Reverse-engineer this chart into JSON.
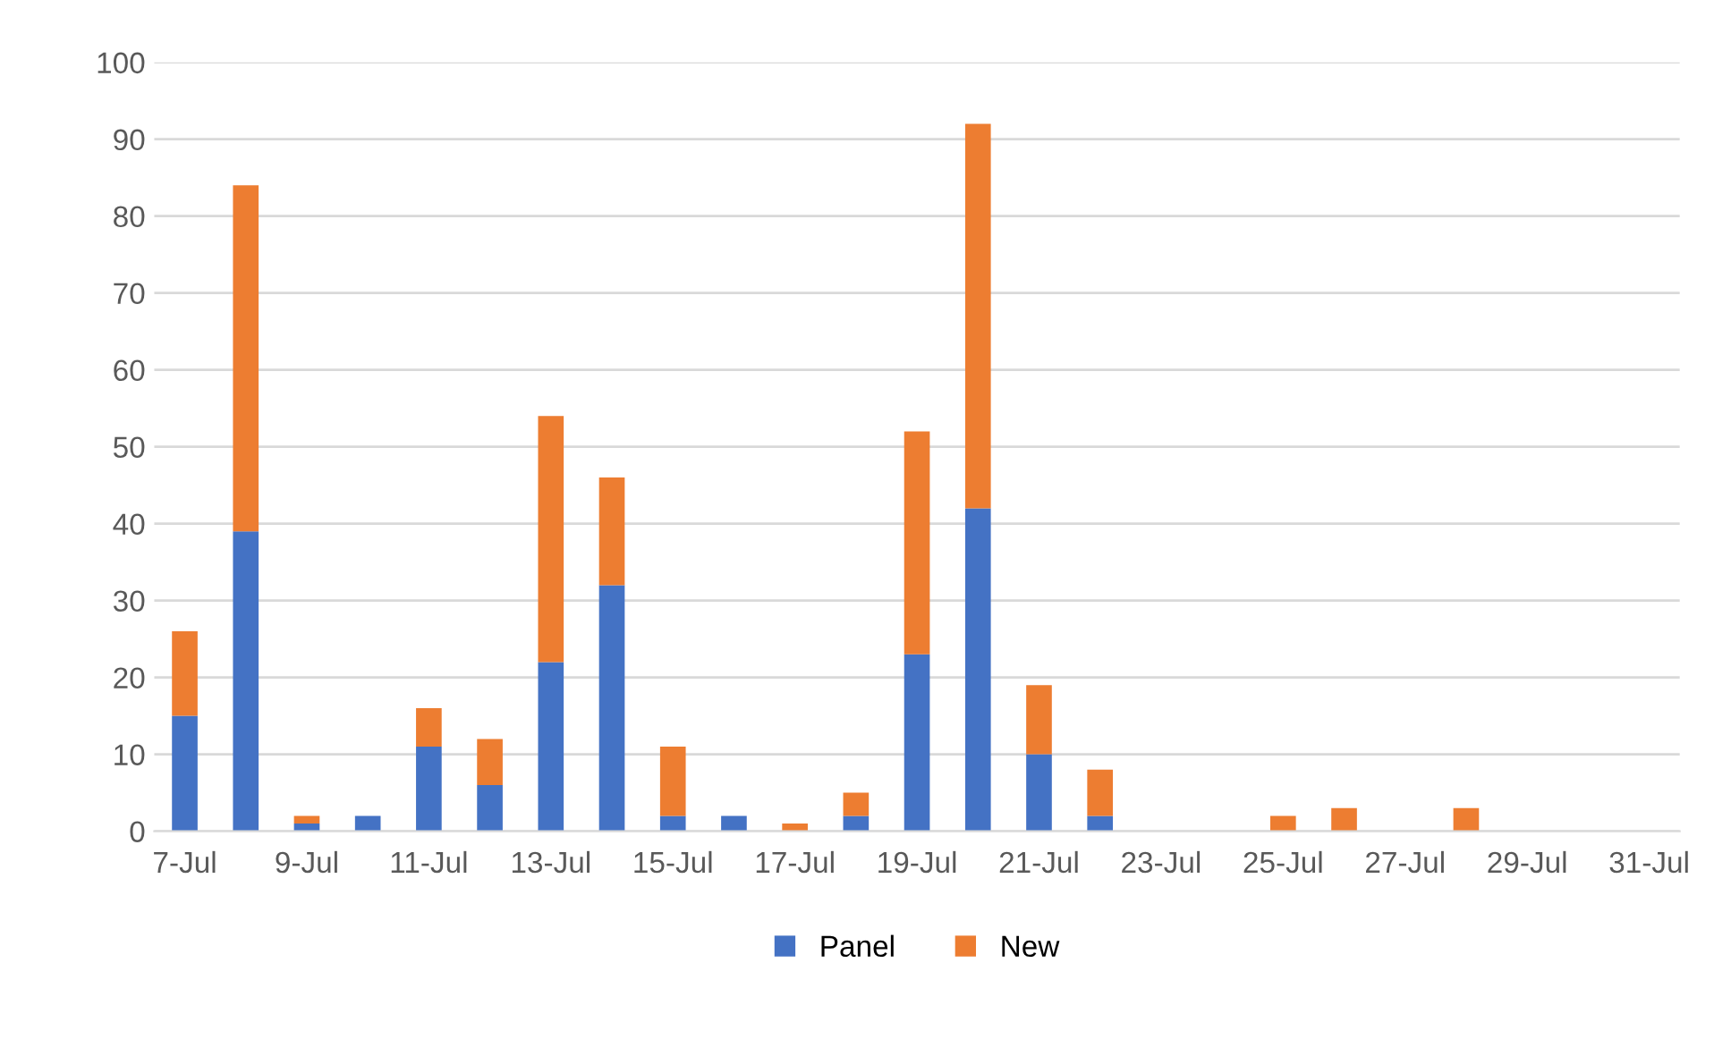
{
  "chart_data": {
    "type": "bar",
    "stacked": true,
    "categories": [
      "7-Jul",
      null,
      "9-Jul",
      null,
      "11-Jul",
      null,
      "13-Jul",
      null,
      "15-Jul",
      null,
      "17-Jul",
      null,
      "19-Jul",
      null,
      "21-Jul",
      null,
      "23-Jul",
      null,
      "25-Jul",
      null,
      "27-Jul",
      null,
      "29-Jul",
      null,
      "31-Jul"
    ],
    "series": [
      {
        "name": "Panel",
        "color": "#4472c4",
        "values": [
          15,
          39,
          1,
          2,
          11,
          6,
          22,
          32,
          2,
          2,
          0,
          2,
          23,
          42,
          10,
          2,
          0,
          0,
          0,
          0,
          0,
          0,
          0,
          0,
          0
        ]
      },
      {
        "name": "New",
        "color": "#ed7d31",
        "values": [
          11,
          45,
          1,
          0,
          5,
          6,
          32,
          14,
          9,
          0,
          1,
          3,
          29,
          50,
          9,
          6,
          0,
          0,
          2,
          3,
          0,
          3,
          0,
          0,
          0
        ]
      }
    ],
    "ylim": [
      0,
      100
    ],
    "yticks": [
      0,
      10,
      20,
      30,
      40,
      50,
      60,
      70,
      80,
      90,
      100
    ],
    "grid": "y",
    "legend": "bottom"
  }
}
